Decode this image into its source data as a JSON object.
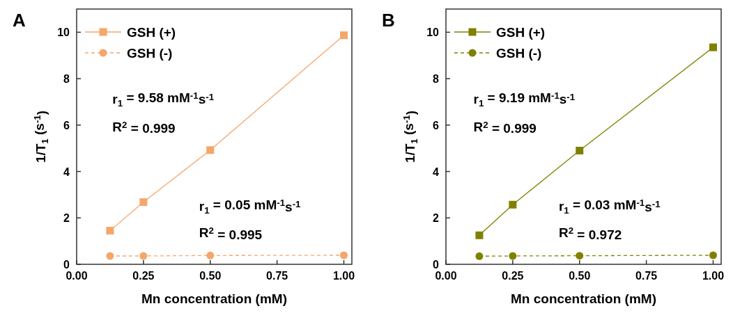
{
  "chart_data": [
    {
      "type": "line",
      "title": "A",
      "xlabel": "Mn concentration (mM)",
      "ylabel": "1/T$_{1}$ (s$^{-1}$)",
      "x": [
        0.125,
        0.25,
        0.5,
        1.0
      ],
      "xlim": [
        0,
        1.03
      ],
      "ylim": [
        0,
        11
      ],
      "xticks": [
        {
          "value": 0,
          "label": "0.00"
        },
        {
          "value": 0.25,
          "label": "0.25"
        },
        {
          "value": 0.5,
          "label": "0.50"
        },
        {
          "value": 0.75,
          "label": "0.75"
        },
        {
          "value": 1,
          "label": "1.00"
        }
      ],
      "yticks": [
        0,
        2,
        4,
        6,
        8,
        10
      ],
      "legend": "top left",
      "grid": false,
      "series": [
        {
          "name": "GSH (+)",
          "color": "#f5a66a",
          "values": [
            1.45,
            2.68,
            4.92,
            9.87
          ],
          "marker": "square",
          "line_style": "solid"
        },
        {
          "name": "GSH (-)",
          "color": "#f5a66a",
          "values": [
            0.36,
            0.36,
            0.38,
            0.39
          ],
          "marker": "circle",
          "line_style": "dashed"
        }
      ],
      "annotations": [
        "r$_{1}$ = 9.58 mM$^{-1}$s$^{-1}$",
        "R$^{2}$ = 0.999",
        "r$_{1}$ = 0.05 mM$^{-1}$s$^{-1}$",
        "R$^{2}$ = 0.995"
      ]
    },
    {
      "type": "line",
      "title": "B",
      "xlabel": "Mn concentration (mM)",
      "ylabel": "1/T$_{1}$ (s$^{-1}$)",
      "x": [
        0.125,
        0.25,
        0.5,
        1.0
      ],
      "xlim": [
        0,
        1.03
      ],
      "ylim": [
        0,
        11
      ],
      "xticks": [
        {
          "value": 0,
          "label": "0.00"
        },
        {
          "value": 0.25,
          "label": "0.25"
        },
        {
          "value": 0.5,
          "label": "0.50"
        },
        {
          "value": 0.75,
          "label": "0.75"
        },
        {
          "value": 1,
          "label": "1.00"
        }
      ],
      "yticks": [
        0,
        2,
        4,
        6,
        8,
        10
      ],
      "legend": "top left",
      "grid": false,
      "series": [
        {
          "name": "GSH (+)",
          "color": "#808000",
          "values": [
            1.25,
            2.57,
            4.9,
            9.35
          ],
          "marker": "square",
          "line_style": "solid"
        },
        {
          "name": "GSH (-)",
          "color": "#808000",
          "values": [
            0.35,
            0.36,
            0.37,
            0.39
          ],
          "marker": "circle",
          "line_style": "dashed"
        }
      ],
      "annotations": [
        "r$_{1}$ = 9.19 mM$^{-1}$s$^{-1}$",
        "R$^{2}$ = 0.999",
        "r$_{1}$ = 0.03 mM$^{-1}$s$^{-1}$",
        "R$^{2}$ = 0.972"
      ]
    }
  ]
}
